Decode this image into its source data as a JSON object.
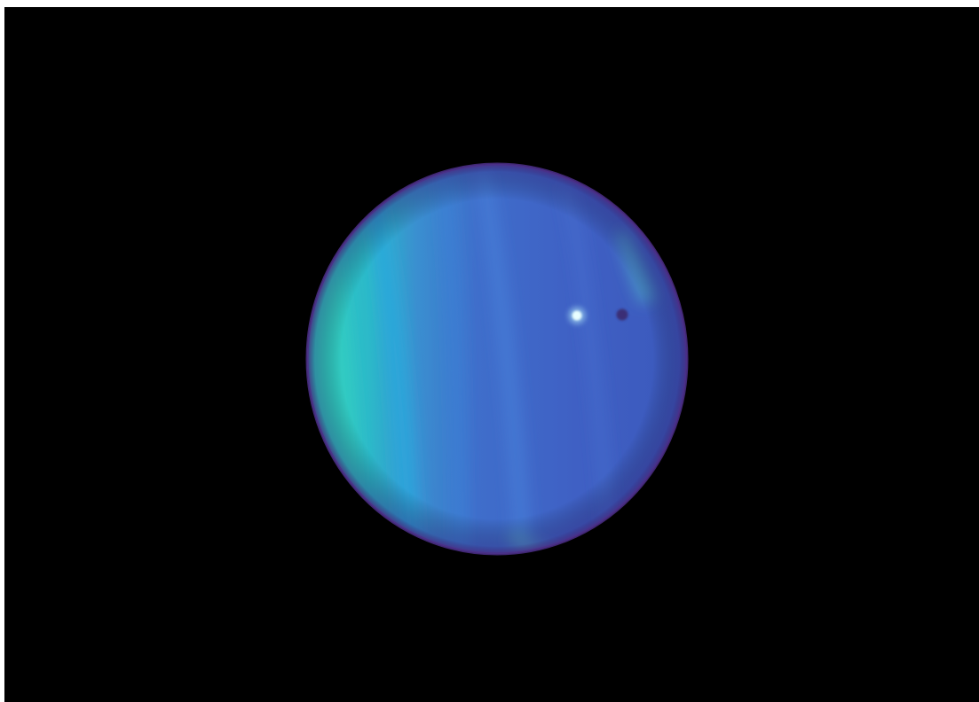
{
  "scene": {
    "subject": "planet-with-moon-and-shadow",
    "colors": {
      "background": "#000000",
      "planet_teal": "#2fc6c4",
      "planet_blue": "#3f63c9",
      "planet_deep_blue": "#3a52b8",
      "limb": "#4b2e86",
      "moon": "#e8ffff",
      "moon_shadow": "#3a2a6e"
    }
  }
}
